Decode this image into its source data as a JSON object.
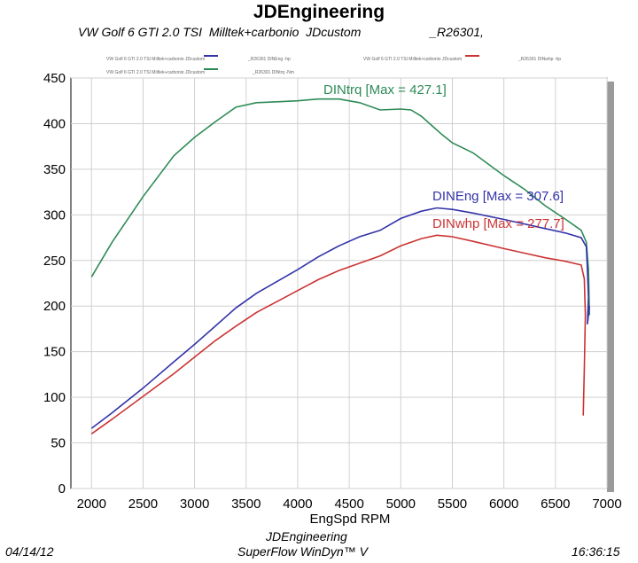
{
  "header": {
    "title": "JDEngineering",
    "subtitle": "VW Golf 6 GTI 2.0 TSI  Milltek+carbonio  JDcustom                    _R26301,"
  },
  "legend": {
    "entries": [
      {
        "text": "VW Golf 6 GTI 2.0 TSI Milltek+carbonio JDcustom",
        "color": "#3333aa"
      },
      {
        "text": "_R26301 DINEng -hp",
        "color": ""
      },
      {
        "text": "VW Golf 6 GTI 2.0 TSI Milltek+carbonio JDcustom",
        "color": "#cc3333"
      },
      {
        "text": "_R26301 DINwhp -hp",
        "color": ""
      },
      {
        "text": "VW Golf 6 GTI 2.0 TSI Milltek+carbonio JDcustom",
        "color": "#2e8b57"
      },
      {
        "text": "_R26301 DINtrq -Nm",
        "color": ""
      }
    ]
  },
  "footer": {
    "date": "04/14/12",
    "company": "JDEngineering",
    "software": "SuperFlow WinDyn™ V",
    "time": "16:36:15"
  },
  "chart_data": {
    "type": "line",
    "xlabel": "EngSpd  RPM",
    "ylabel": "",
    "xlim": [
      1800,
      7000
    ],
    "ylim": [
      0,
      450
    ],
    "xticks": [
      2000,
      2500,
      3000,
      3500,
      4000,
      4500,
      5000,
      5500,
      6000,
      6500,
      7000
    ],
    "yticks": [
      0,
      50,
      100,
      150,
      200,
      250,
      300,
      350,
      400,
      450
    ],
    "grid": true,
    "series": [
      {
        "name": "DINtrq",
        "color": "#2e8b57",
        "annotation": "DINtrq [Max = 427.1]",
        "x": [
          2000,
          2200,
          2500,
          2800,
          3000,
          3200,
          3400,
          3600,
          3800,
          4000,
          4200,
          4400,
          4600,
          4800,
          5000,
          5100,
          5200,
          5300,
          5400,
          5500,
          5700,
          6000,
          6200,
          6400,
          6600,
          6750,
          6800,
          6820,
          6830
        ],
        "values": [
          232,
          270,
          320,
          365,
          385,
          402,
          418,
          423,
          424,
          425,
          427,
          427,
          423,
          415,
          416,
          415,
          408,
          398,
          388,
          379,
          368,
          343,
          328,
          310,
          295,
          283,
          270,
          240,
          190
        ]
      },
      {
        "name": "DINEng",
        "color": "#3333aa",
        "annotation": "DINEng [Max = 307.6]",
        "x": [
          2000,
          2200,
          2500,
          2800,
          3000,
          3200,
          3400,
          3600,
          3800,
          4000,
          4200,
          4400,
          4600,
          4800,
          5000,
          5200,
          5350,
          5500,
          5700,
          6000,
          6200,
          6400,
          6600,
          6750,
          6800,
          6810,
          6820,
          6810,
          6830
        ],
        "values": [
          66,
          83,
          110,
          139,
          158,
          178,
          198,
          214,
          227,
          240,
          254,
          266,
          276,
          283,
          296,
          304,
          307.6,
          306,
          302,
          295,
          290,
          285,
          280,
          275,
          265,
          240,
          210,
          180,
          200
        ]
      },
      {
        "name": "DINwhp",
        "color": "#cc3333",
        "annotation": "DINwhp [Max = 277.7]",
        "x": [
          2000,
          2200,
          2500,
          2800,
          3000,
          3200,
          3400,
          3600,
          3800,
          4000,
          4200,
          4400,
          4600,
          4800,
          5000,
          5200,
          5350,
          5500,
          5700,
          6000,
          6200,
          6400,
          6600,
          6750,
          6780,
          6790,
          6780,
          6770
        ],
        "values": [
          60,
          76,
          101,
          126,
          144,
          162,
          178,
          193,
          205,
          217,
          229,
          239,
          247,
          255,
          266,
          274,
          277.7,
          276,
          271,
          263,
          258,
          253,
          249,
          245,
          230,
          190,
          130,
          80
        ]
      }
    ]
  }
}
